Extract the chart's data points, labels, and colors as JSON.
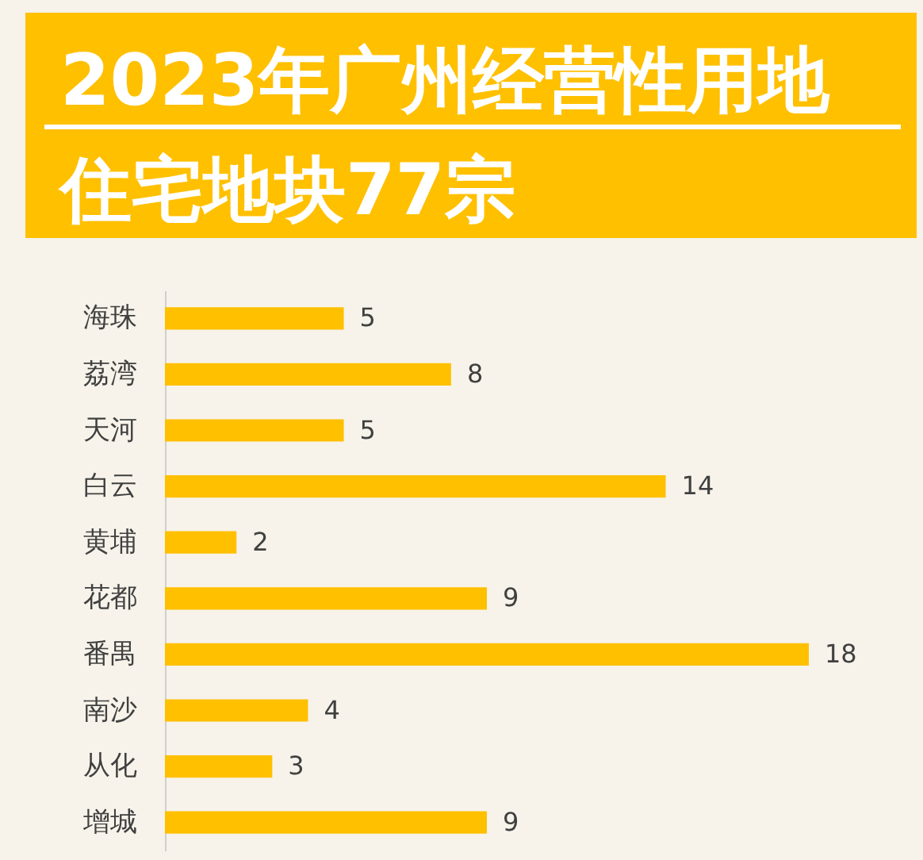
{
  "chart_data": {
    "type": "bar",
    "orientation": "horizontal",
    "title": "2023年广州经营性用地",
    "subtitle": "住宅地块77宗",
    "categories": [
      "海珠",
      "荔湾",
      "天河",
      "白云",
      "黄埔",
      "花都",
      "番禺",
      "南沙",
      "从化",
      "增城"
    ],
    "values": [
      5,
      8,
      5,
      14,
      2,
      9,
      18,
      4,
      3,
      9
    ],
    "color": "#ffc000",
    "data_labels": true,
    "tick_labels": "y"
  }
}
